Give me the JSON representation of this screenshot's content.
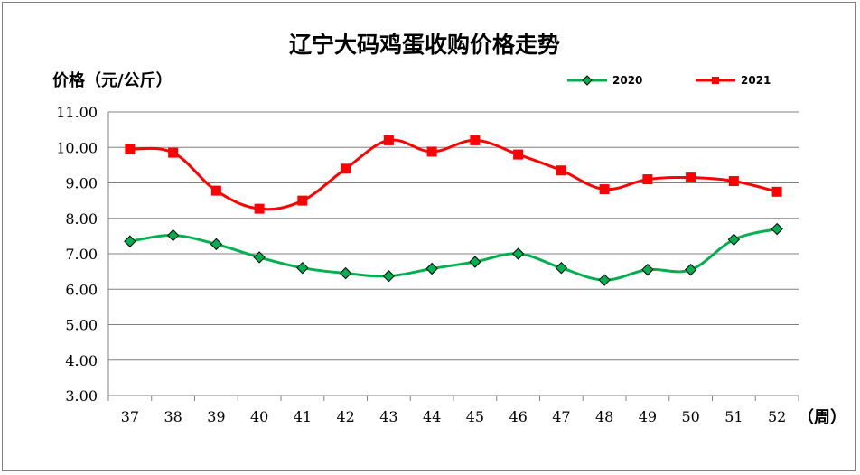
{
  "chart_data": {
    "type": "line",
    "title": "辽宁大码鸡蛋收购价格走势",
    "ylabel": "价格（元/公斤）",
    "xlabel": "（周）",
    "categories": [
      "37",
      "38",
      "39",
      "40",
      "41",
      "42",
      "43",
      "44",
      "45",
      "46",
      "47",
      "48",
      "49",
      "50",
      "51",
      "52"
    ],
    "y_ticks": [
      "3.00",
      "4.00",
      "5.00",
      "6.00",
      "7.00",
      "8.00",
      "9.00",
      "10.00",
      "11.00"
    ],
    "ylim": [
      3,
      11
    ],
    "grid": true,
    "legend_position": "top-right",
    "series": [
      {
        "name": "2020",
        "color": "#00B050",
        "marker": "diamond",
        "values": [
          7.35,
          7.52,
          7.27,
          6.9,
          6.6,
          6.45,
          6.37,
          6.58,
          6.77,
          7.0,
          6.6,
          6.26,
          6.55,
          6.55,
          7.4,
          7.7
        ]
      },
      {
        "name": "2021",
        "color": "#FF0000",
        "marker": "square",
        "values": [
          9.95,
          9.85,
          8.78,
          8.27,
          8.5,
          9.4,
          10.2,
          9.88,
          10.2,
          9.8,
          9.35,
          8.82,
          9.1,
          9.15,
          9.05,
          8.75
        ]
      }
    ]
  }
}
